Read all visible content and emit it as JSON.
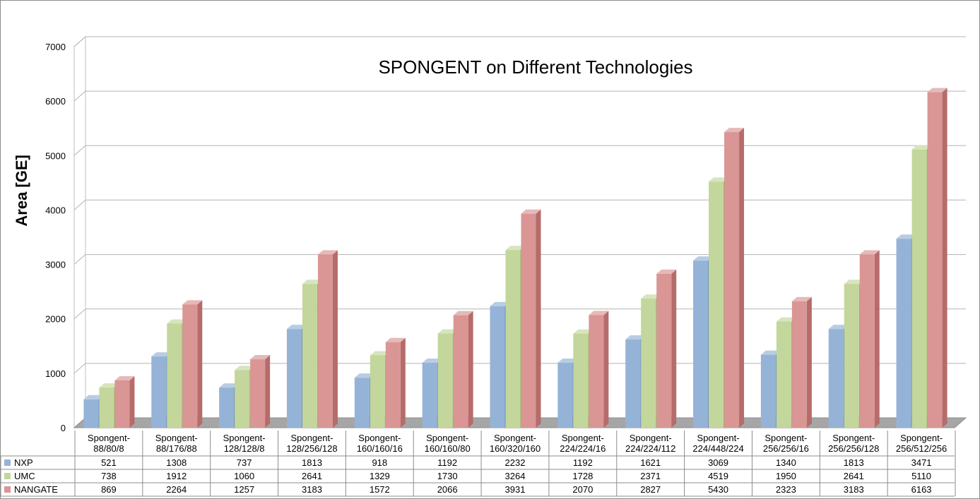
{
  "chart_data": {
    "type": "bar",
    "title": "SPONGENT on Different Technologies",
    "xlabel": "",
    "ylabel": "Area [GE]",
    "ylim": [
      0,
      7000
    ],
    "yticks": [
      0,
      1000,
      2000,
      3000,
      4000,
      5000,
      6000,
      7000
    ],
    "grid": true,
    "legend": "data table below chart",
    "categories": [
      [
        "Spongent-",
        "88/80/8"
      ],
      [
        "Spongent-",
        "88/176/88"
      ],
      [
        "Spongent-",
        "128/128/8"
      ],
      [
        "Spongent-",
        "128/256/128"
      ],
      [
        "Spongent-",
        "160/160/16"
      ],
      [
        "Spongent-",
        "160/160/80"
      ],
      [
        "Spongent-",
        "160/320/160"
      ],
      [
        "Spongent-",
        "224/224/16"
      ],
      [
        "Spongent-",
        "224/224/112"
      ],
      [
        "Spongent-",
        "224/448/224"
      ],
      [
        "Spongent-",
        "256/256/16"
      ],
      [
        "Spongent-",
        "256/256/128"
      ],
      [
        "Spongent-",
        "256/512/256"
      ]
    ],
    "series": [
      {
        "name": "NXP",
        "color": "#95b3d7",
        "top": "#b8cce4",
        "side": "#6f8fb8",
        "values": [
          521,
          1308,
          737,
          1813,
          918,
          1192,
          2232,
          1192,
          1621,
          3069,
          1340,
          1813,
          3471
        ]
      },
      {
        "name": "UMC",
        "color": "#c3d69b",
        "top": "#d7e4bd",
        "side": "#9bb46c",
        "values": [
          738,
          1912,
          1060,
          2641,
          1329,
          1730,
          3264,
          1728,
          2371,
          4519,
          1950,
          2641,
          5110
        ]
      },
      {
        "name": "NANGATE",
        "color": "#d99694",
        "top": "#e6b9b8",
        "side": "#b56c6a",
        "values": [
          869,
          2264,
          1257,
          3183,
          1572,
          2066,
          3931,
          2070,
          2827,
          5430,
          2323,
          3183,
          6163
        ]
      }
    ]
  }
}
